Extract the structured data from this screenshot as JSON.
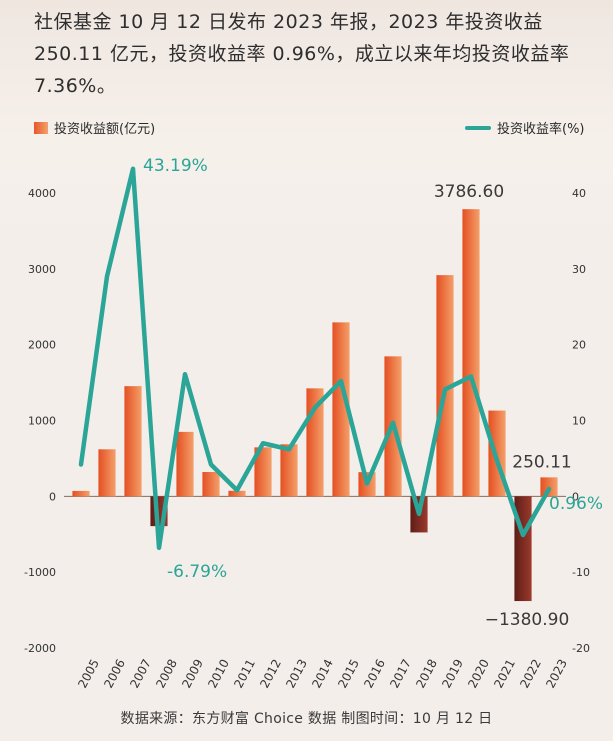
{
  "headline": "社保基金 10 月 12 日发布 2023 年报，2023 年投资收益 250.11 亿元，投资收益率 0.96%，成立以来年均投资收益率 7.36%。",
  "legend": {
    "bar_label": "投资收益额(亿元)",
    "line_label": "投资收益率(%)"
  },
  "footer": "数据来源：东方财富 Choice 数据    制图时间：10 月 12 日",
  "colors": {
    "bar_positive": "#ef6a35",
    "bar_negative": "#7a2a22",
    "line": "#2aa597",
    "annotation_line": "#2aa597",
    "annotation_bar": "#3a3a3a"
  },
  "chart_data": {
    "type": "bar",
    "categories": [
      "2005",
      "2006",
      "2007",
      "2008",
      "2009",
      "2010",
      "2011",
      "2012",
      "2013",
      "2014",
      "2015",
      "2016",
      "2017",
      "2018",
      "2019",
      "2020",
      "2021",
      "2022",
      "2023"
    ],
    "series": [
      {
        "name": "投资收益额(亿元)",
        "type": "bar",
        "axis": "left",
        "values": [
          71,
          620,
          1453,
          -393,
          850,
          321,
          73,
          646,
          686,
          1424,
          2294,
          319,
          1846,
          -476,
          2917,
          3786.6,
          1131,
          -1380.9,
          250.11
        ]
      },
      {
        "name": "投资收益率(%)",
        "type": "line",
        "axis": "right",
        "values": [
          4.2,
          29,
          43.19,
          -6.79,
          16.1,
          4.2,
          0.8,
          7.0,
          6.2,
          11.7,
          15.2,
          1.7,
          9.7,
          -2.3,
          14.1,
          15.8,
          4.7,
          -5.1,
          0.96
        ]
      }
    ],
    "y_left": {
      "ticks": [
        -2000,
        -1000,
        0,
        1000,
        2000,
        3000,
        4000
      ],
      "ylim": [
        -2000,
        4000
      ]
    },
    "y_right": {
      "ticks": [
        -20,
        -10,
        0,
        10,
        20,
        30,
        40
      ],
      "ylim": [
        -20,
        40
      ]
    },
    "annotations": [
      {
        "series": "line",
        "category": "2007",
        "text": "43.19%"
      },
      {
        "series": "line",
        "category": "2008",
        "text": "-6.79%"
      },
      {
        "series": "line",
        "category": "2023",
        "text": "0.96%"
      },
      {
        "series": "bar",
        "category": "2020",
        "text": "3786.60"
      },
      {
        "series": "bar",
        "category": "2022",
        "text": "−1380.90"
      },
      {
        "series": "bar",
        "category": "2023",
        "text": "250.11"
      }
    ],
    "legend_position": "top"
  }
}
